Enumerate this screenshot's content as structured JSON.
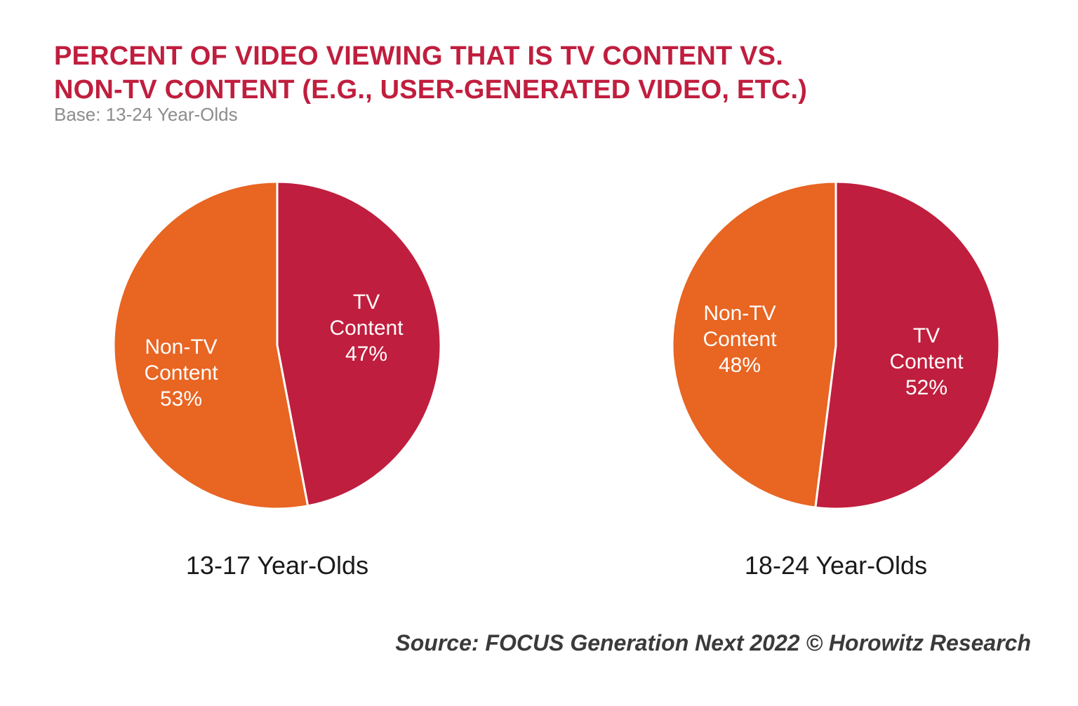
{
  "title_lines": [
    "PERCENT OF VIDEO VIEWING THAT IS TV CONTENT VS.",
    "NON-TV CONTENT (E.G., USER-GENERATED VIDEO, ETC.)"
  ],
  "subtitle": "Base: 13-24 Year-Olds",
  "source": "Source: FOCUS Generation Next 2022 © Horowitz Research",
  "colors": {
    "title": "#c01e3e",
    "tv_content": "#c01e3e",
    "non_tv_content": "#e86522",
    "subtitle": "#8c8c8c",
    "source": "#3a3a3a"
  },
  "chart_data": [
    {
      "type": "pie",
      "title": "13-17 Year-Olds",
      "slices": [
        {
          "label_lines": [
            "TV",
            "Content"
          ],
          "value": 47,
          "value_label": "47%"
        },
        {
          "label_lines": [
            "Non-TV",
            "Content"
          ],
          "value": 53,
          "value_label": "53%"
        }
      ]
    },
    {
      "type": "pie",
      "title": "18-24 Year-Olds",
      "slices": [
        {
          "label_lines": [
            "TV",
            "Content"
          ],
          "value": 52,
          "value_label": "52%"
        },
        {
          "label_lines": [
            "Non-TV",
            "Content"
          ],
          "value": 48,
          "value_label": "48%"
        }
      ]
    }
  ]
}
